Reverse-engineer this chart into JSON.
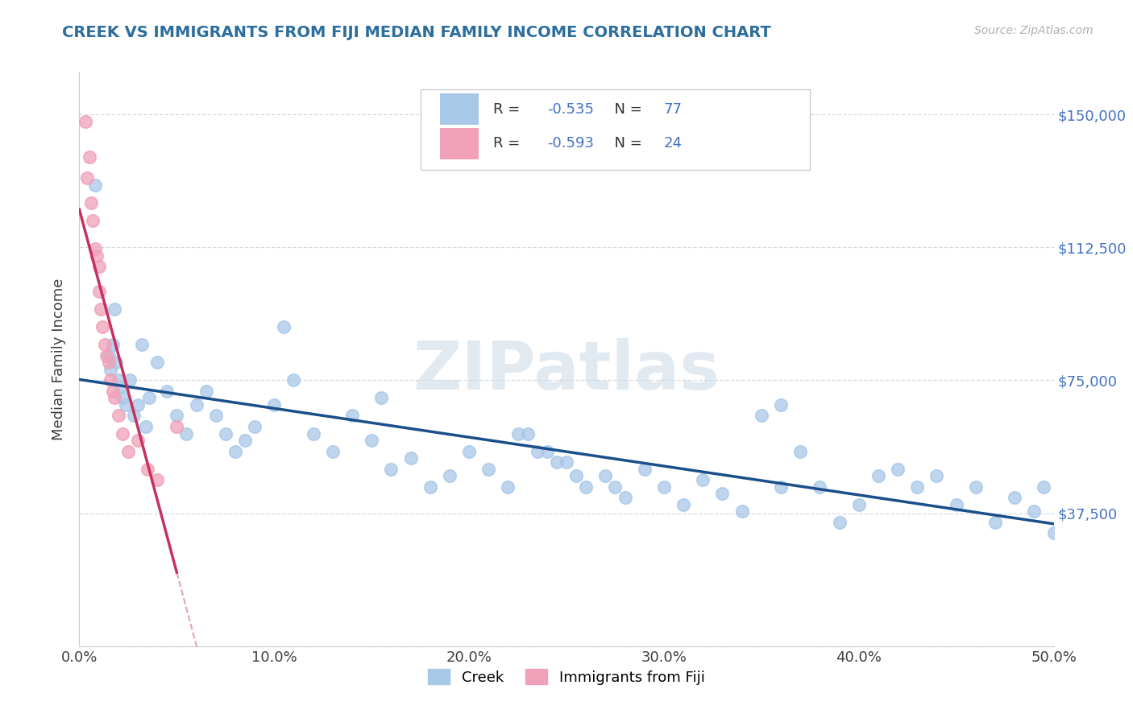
{
  "title": "CREEK VS IMMIGRANTS FROM FIJI MEDIAN FAMILY INCOME CORRELATION CHART",
  "source": "Source: ZipAtlas.com",
  "ylabel": "Median Family Income",
  "xlim": [
    0.0,
    50.0
  ],
  "ylim": [
    0,
    162000
  ],
  "yticks": [
    0,
    37500,
    75000,
    112500,
    150000
  ],
  "ytick_labels": [
    "",
    "$37,500",
    "$75,000",
    "$112,500",
    "$150,000"
  ],
  "xtick_positions": [
    0,
    10,
    20,
    30,
    40,
    50
  ],
  "xtick_labels": [
    "0.0%",
    "10.0%",
    "20.0%",
    "30.0%",
    "40.0%",
    "50.0%"
  ],
  "creek_R": "-0.535",
  "creek_N": "77",
  "fiji_R": "-0.593",
  "fiji_N": "24",
  "creek_dot_color": "#a8c8e8",
  "fiji_dot_color": "#f0a0b8",
  "creek_line_color": "#1a4f8a",
  "fiji_line_color": "#c83060",
  "tick_color": "#4472c4",
  "legend_num_color": "#4472c4",
  "watermark_color": "#d0dce8",
  "grid_color": "#c8d0e0",
  "title_color": "#2c6e9e",
  "source_color": "#b0b0b0",
  "ylabel_color": "#404040",
  "creek_x": [
    0.8,
    1.8,
    1.5,
    1.6,
    1.7,
    1.9,
    2.0,
    2.1,
    2.2,
    2.4,
    2.6,
    2.8,
    3.0,
    3.2,
    3.4,
    3.6,
    4.0,
    4.5,
    5.0,
    5.5,
    6.0,
    6.5,
    7.0,
    7.5,
    8.0,
    8.5,
    9.0,
    10.0,
    11.0,
    12.0,
    13.0,
    14.0,
    15.0,
    16.0,
    17.0,
    18.0,
    19.0,
    20.0,
    21.0,
    22.0,
    23.0,
    24.0,
    25.0,
    26.0,
    27.0,
    28.0,
    29.0,
    30.0,
    31.0,
    32.0,
    33.0,
    34.0,
    35.0,
    36.0,
    37.0,
    38.0,
    39.0,
    40.0,
    41.0,
    42.0,
    43.0,
    44.0,
    45.0,
    46.0,
    47.0,
    48.0,
    49.0,
    49.5,
    50.0,
    22.5,
    23.5,
    24.5,
    10.5,
    15.5,
    25.5,
    27.5,
    36.0
  ],
  "creek_y": [
    130000,
    95000,
    82000,
    78000,
    85000,
    80000,
    75000,
    73000,
    70000,
    68000,
    75000,
    65000,
    68000,
    85000,
    62000,
    70000,
    80000,
    72000,
    65000,
    60000,
    68000,
    72000,
    65000,
    60000,
    55000,
    58000,
    62000,
    68000,
    75000,
    60000,
    55000,
    65000,
    58000,
    50000,
    53000,
    45000,
    48000,
    55000,
    50000,
    45000,
    60000,
    55000,
    52000,
    45000,
    48000,
    42000,
    50000,
    45000,
    40000,
    47000,
    43000,
    38000,
    65000,
    45000,
    55000,
    45000,
    35000,
    40000,
    48000,
    50000,
    45000,
    48000,
    40000,
    45000,
    35000,
    42000,
    38000,
    45000,
    32000,
    60000,
    55000,
    52000,
    90000,
    70000,
    48000,
    45000,
    68000
  ],
  "fiji_x": [
    0.3,
    0.4,
    0.5,
    0.6,
    0.7,
    0.8,
    0.9,
    1.0,
    1.0,
    1.1,
    1.2,
    1.3,
    1.4,
    1.5,
    1.6,
    1.7,
    1.8,
    2.0,
    2.2,
    2.5,
    3.0,
    3.5,
    4.0,
    5.0
  ],
  "fiji_y": [
    148000,
    132000,
    138000,
    125000,
    120000,
    112000,
    110000,
    107000,
    100000,
    95000,
    90000,
    85000,
    82000,
    80000,
    75000,
    72000,
    70000,
    65000,
    60000,
    55000,
    58000,
    50000,
    47000,
    62000
  ]
}
